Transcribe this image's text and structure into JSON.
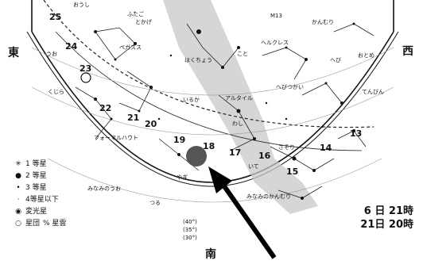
{
  "directions": {
    "east": "東",
    "west": "西",
    "south": "南"
  },
  "legend": {
    "items": [
      {
        "symbol": "✳",
        "label": "1 等星"
      },
      {
        "symbol": "●",
        "label": "2 等星"
      },
      {
        "symbol": "•",
        "label": "3 等星"
      },
      {
        "symbol": "·",
        "label": "4等星以下"
      },
      {
        "symbol": "◉",
        "label": "変光星"
      },
      {
        "symbol": "○",
        "label": "星団"
      },
      {
        "symbol": "",
        "label": "%  星雲"
      }
    ]
  },
  "time": {
    "line1": "6 日 21時",
    "line2": "21日 20時"
  },
  "constellations": [
    "おうし",
    "ペガスス",
    "ふたご",
    "アルタイル",
    "はくちょう",
    "いるか",
    "わし",
    "へびつかい",
    "ヘルクレス",
    "かんむり",
    "おとめ",
    "てんびん",
    "へび",
    "いて",
    "やぎ",
    "みなみのうお",
    "つる",
    "みなみのかんむり",
    "さそり",
    "くじら",
    "うお",
    "とかげ",
    "こと",
    "フォーマルハウト"
  ],
  "ecliptic_numbers": [
    "25",
    "24",
    "23",
    "22",
    "21",
    "20",
    "19",
    "18",
    "17",
    "16",
    "15",
    "14",
    "13"
  ],
  "altitude_labels": [
    "(40°)",
    "(35°)",
    "(30°)"
  ],
  "labels": {
    "m13": "M13"
  }
}
